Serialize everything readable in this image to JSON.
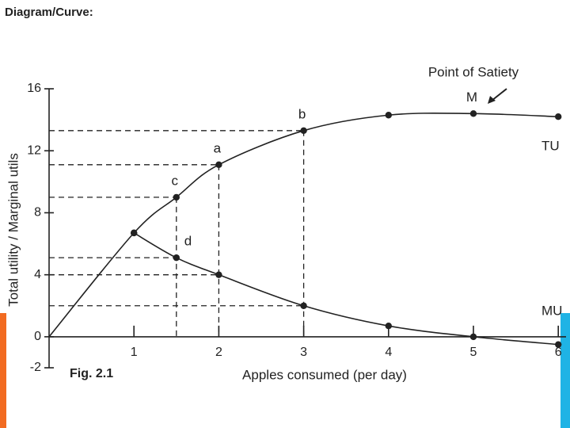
{
  "header": {
    "title": "Diagram/Curve:"
  },
  "chart_data": {
    "type": "line",
    "annotation": "Point of Satiety",
    "figure_label": "Fig. 2.1",
    "xlabel": "Apples consumed (per day)",
    "ylabel": "Total utility / Marginal utils",
    "xlim": [
      0,
      6
    ],
    "xticks": [
      1,
      2,
      3,
      4,
      5,
      6
    ],
    "ylim": [
      -2,
      16
    ],
    "yticks": [
      -2,
      0,
      4,
      8,
      12,
      16
    ],
    "series": [
      {
        "name": "TU",
        "color": "#222222",
        "x": [
          0,
          1,
          1.5,
          2,
          3,
          4,
          5,
          6
        ],
        "values": [
          0,
          6.7,
          9,
          11.1,
          13.3,
          14.3,
          14.4,
          14.2
        ],
        "point_labels": [
          null,
          null,
          "c",
          "a",
          "b",
          null,
          "M",
          null
        ]
      },
      {
        "name": "MU",
        "color": "#222222",
        "x": [
          1,
          1.5,
          2,
          3,
          4,
          5,
          6
        ],
        "values": [
          6.7,
          5.1,
          4,
          2,
          0.7,
          0,
          -0.5
        ],
        "point_labels": [
          null,
          "d",
          null,
          null,
          null,
          null,
          null
        ]
      }
    ]
  }
}
